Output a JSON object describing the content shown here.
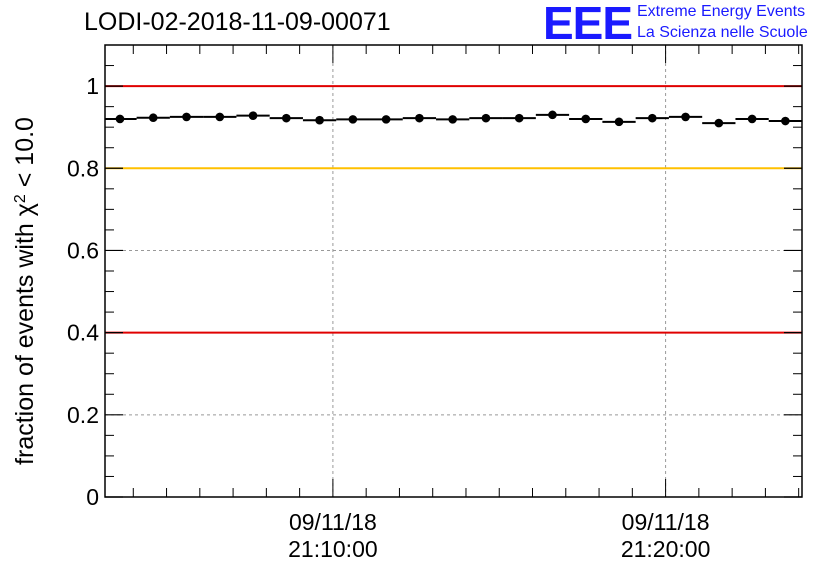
{
  "header": {
    "title": "LODI-02-2018-11-09-00071",
    "logo_text": "EEE",
    "logo_line1": "Extreme Energy Events",
    "logo_line2": "La Scienza nelle Scuole"
  },
  "colors": {
    "red_line": "#e00000",
    "yellow_line": "#ffc000",
    "grid": "#999999",
    "points": "#000000",
    "logo": "#1a1aff"
  },
  "chart_data": {
    "type": "scatter",
    "title": "LODI-02-2018-11-09-00071",
    "ylabel_main": "fraction of events with ",
    "ylabel_chi": "χ",
    "ylabel_sup": "2",
    "ylabel_tail": " < 10.0",
    "xlabel": "",
    "ylim": [
      0,
      1.1
    ],
    "yticks": [
      0,
      0.2,
      0.4,
      0.6,
      0.8,
      1
    ],
    "ytick_labels": [
      "0",
      "0.2",
      "0.4",
      "0.6",
      "0.8",
      "1"
    ],
    "xlim_minutes": [
      3.15,
      24.1
    ],
    "xticks": [
      {
        "minute": 10,
        "line1": "09/11/18",
        "line2": "21:10:00"
      },
      {
        "minute": 20,
        "line1": "09/11/18",
        "line2": "21:20:00"
      }
    ],
    "reference_lines": [
      {
        "y": 1.0,
        "color": "red"
      },
      {
        "y": 0.8,
        "color": "yellow"
      },
      {
        "y": 0.4,
        "color": "red"
      }
    ],
    "bin_width_minutes": 1,
    "series": [
      {
        "name": "fraction",
        "x_minutes": [
          3.6,
          4.6,
          5.6,
          6.6,
          7.6,
          8.6,
          9.6,
          10.6,
          11.6,
          12.6,
          13.6,
          14.6,
          15.6,
          16.6,
          17.6,
          18.6,
          19.6,
          20.6,
          21.6,
          22.6,
          23.6
        ],
        "values": [
          0.92,
          0.923,
          0.925,
          0.925,
          0.928,
          0.922,
          0.917,
          0.919,
          0.919,
          0.922,
          0.919,
          0.922,
          0.922,
          0.93,
          0.92,
          0.913,
          0.922,
          0.925,
          0.91,
          0.92,
          0.915
        ]
      }
    ]
  }
}
